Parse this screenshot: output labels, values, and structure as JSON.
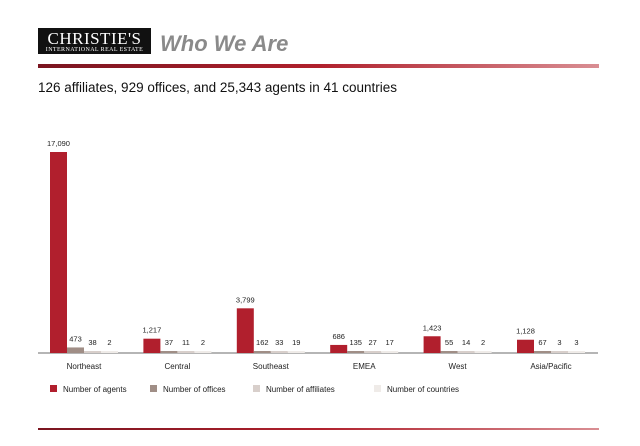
{
  "header": {
    "logo_main": "CHRISTIE'S",
    "logo_sub": "INTERNATIONAL REAL ESTATE",
    "title": "Who We Are",
    "subtitle": "126 affiliates, 929 offices, and 25,343 agents in 41 countries"
  },
  "colors": {
    "accent": "#b0202c",
    "agents": "#b11f2d",
    "offices": "#a08e86",
    "affiliates": "#d8cfcb",
    "countries": "#efebe8"
  },
  "chart_data": {
    "type": "bar",
    "title": "",
    "xlabel": "",
    "ylabel": "",
    "categories": [
      "Northeast",
      "Central",
      "Southeast",
      "EMEA",
      "West",
      "Asia/Pacific"
    ],
    "series": [
      {
        "name": "Number of agents",
        "values": [
          17090,
          1217,
          3799,
          686,
          1423,
          1128
        ],
        "labels": [
          "17,090",
          "1,217",
          "3,799",
          "686",
          "1,423",
          "1,128"
        ]
      },
      {
        "name": "Number of offices",
        "values": [
          473,
          37,
          162,
          135,
          55,
          67
        ],
        "labels": [
          "473",
          "37",
          "162",
          "135",
          "55",
          "67"
        ]
      },
      {
        "name": "Number of affiliates",
        "values": [
          38,
          11,
          33,
          27,
          14,
          3
        ],
        "labels": [
          "38",
          "11",
          "33",
          "27",
          "14",
          "3"
        ]
      },
      {
        "name": "Number of countries",
        "values": [
          2,
          2,
          19,
          17,
          2,
          3
        ],
        "labels": [
          "2",
          "2",
          "19",
          "17",
          "2",
          "3"
        ]
      }
    ],
    "legend": "bottom",
    "grid": false
  }
}
